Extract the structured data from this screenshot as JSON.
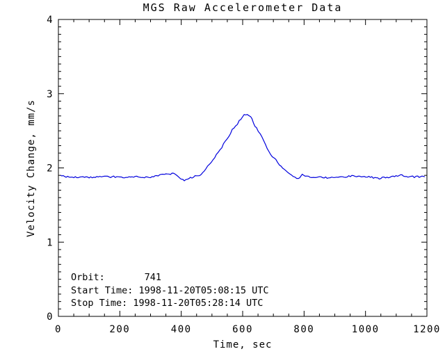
{
  "window": {
    "background": "#ffffff"
  },
  "chart_data": {
    "type": "line",
    "title": "MGS Raw Accelerometer Data",
    "xlabel": "Time, sec",
    "ylabel": "Velocity Change, mm/s",
    "xlim": [
      0,
      1200
    ],
    "ylim": [
      0,
      4
    ],
    "x_major_ticks": [
      0,
      200,
      400,
      600,
      800,
      1000,
      1200
    ],
    "x_minor_step": 50,
    "y_major_ticks": [
      0,
      1,
      2,
      3,
      4
    ],
    "y_minor_step": 0.1,
    "grid": false,
    "legend": "none",
    "line_color": "#0000dd",
    "axis_color": "#000000",
    "noise_mm": 0.011,
    "series": [
      {
        "name": "velocity_change",
        "points": [
          [
            7,
            1.9
          ],
          [
            20,
            1.88
          ],
          [
            45,
            1.87
          ],
          [
            70,
            1.88
          ],
          [
            100,
            1.87
          ],
          [
            130,
            1.88
          ],
          [
            160,
            1.88
          ],
          [
            190,
            1.88
          ],
          [
            220,
            1.87
          ],
          [
            250,
            1.88
          ],
          [
            280,
            1.87
          ],
          [
            310,
            1.88
          ],
          [
            330,
            1.9
          ],
          [
            355,
            1.92
          ],
          [
            375,
            1.92
          ],
          [
            395,
            1.87
          ],
          [
            410,
            1.83
          ],
          [
            425,
            1.86
          ],
          [
            440,
            1.88
          ],
          [
            460,
            1.9
          ],
          [
            475,
            1.95
          ],
          [
            486,
            2.02
          ],
          [
            498,
            2.08
          ],
          [
            509,
            2.14
          ],
          [
            520,
            2.21
          ],
          [
            532,
            2.28
          ],
          [
            543,
            2.37
          ],
          [
            555,
            2.42
          ],
          [
            566,
            2.51
          ],
          [
            577,
            2.56
          ],
          [
            589,
            2.63
          ],
          [
            598,
            2.68
          ],
          [
            605,
            2.72
          ],
          [
            615,
            2.72
          ],
          [
            622,
            2.7
          ],
          [
            630,
            2.66
          ],
          [
            636,
            2.59
          ],
          [
            645,
            2.54
          ],
          [
            657,
            2.46
          ],
          [
            668,
            2.37
          ],
          [
            680,
            2.25
          ],
          [
            691,
            2.18
          ],
          [
            702,
            2.13
          ],
          [
            714,
            2.08
          ],
          [
            725,
            2.02
          ],
          [
            736,
            1.97
          ],
          [
            748,
            1.94
          ],
          [
            759,
            1.91
          ],
          [
            770,
            1.87
          ],
          [
            782,
            1.86
          ],
          [
            790,
            1.9
          ],
          [
            798,
            1.91
          ],
          [
            809,
            1.88
          ],
          [
            841,
            1.88
          ],
          [
            875,
            1.87
          ],
          [
            920,
            1.88
          ],
          [
            966,
            1.89
          ],
          [
            1011,
            1.88
          ],
          [
            1045,
            1.86
          ],
          [
            1080,
            1.88
          ],
          [
            1114,
            1.9
          ],
          [
            1148,
            1.88
          ],
          [
            1170,
            1.88
          ],
          [
            1193,
            1.88
          ]
        ]
      }
    ],
    "annotations": [
      "Orbit:       741",
      "Start Time: 1998-11-20T05:08:15 UTC",
      "Stop Time: 1998-11-20T05:28:14 UTC"
    ]
  }
}
